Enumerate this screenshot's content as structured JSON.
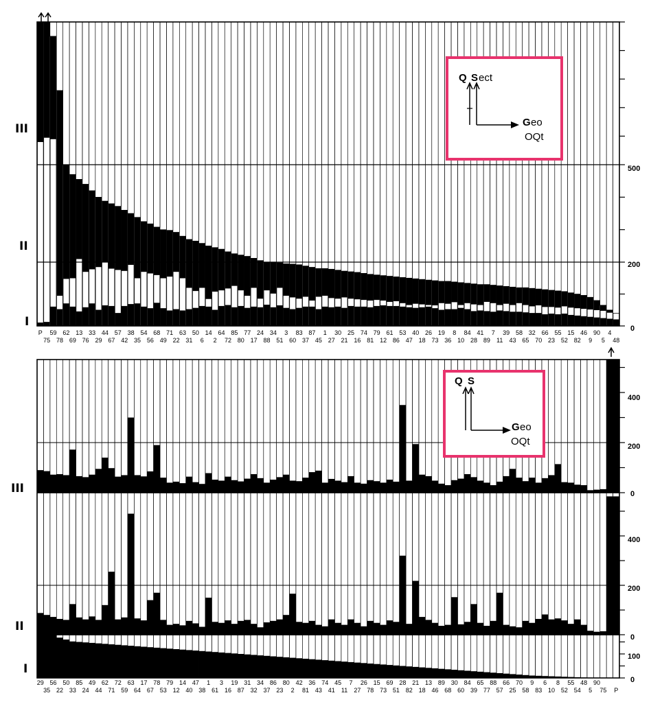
{
  "top_chart": {
    "panel_labels": [
      "III",
      "II",
      "I"
    ],
    "right_ticks": [
      "500",
      "200",
      "0"
    ],
    "inset": {
      "q": "Q",
      "s": "S",
      "s_rest": "ect",
      "geo_g": "G",
      "geo_rest": "eo",
      "oqt": "OQt"
    },
    "categories_upper": [
      "P",
      "59",
      "62",
      "13",
      "33",
      "44",
      "57",
      "38",
      "54",
      "68",
      "71",
      "63",
      "50",
      "14",
      "64",
      "85",
      "77",
      "24",
      "34",
      "3",
      "83",
      "87",
      "1",
      "30",
      "25",
      "74",
      "79",
      "61",
      "53",
      "40",
      "26",
      "19",
      "8",
      "84",
      "41",
      "7",
      "39",
      "58",
      "32",
      "66",
      "55",
      "15",
      "46",
      "90",
      "4"
    ],
    "categories_lower": [
      "75",
      "78",
      "69",
      "76",
      "29",
      "67",
      "42",
      "35",
      "56",
      "49",
      "22",
      "31",
      "6",
      "2",
      "72",
      "80",
      "17",
      "88",
      "51",
      "60",
      "37",
      "45",
      "27",
      "21",
      "16",
      "81",
      "12",
      "86",
      "47",
      "18",
      "73",
      "36",
      "10",
      "28",
      "89",
      "11",
      "43",
      "65",
      "70",
      "23",
      "52",
      "82",
      "9",
      "5",
      "48"
    ]
  },
  "bottom_chart": {
    "panel_labels": [
      "III",
      "II",
      "I"
    ],
    "right_ticks_III": [
      "400",
      "200",
      "0"
    ],
    "right_ticks_II": [
      "400",
      "200",
      "0"
    ],
    "right_ticks_I": [
      "100",
      "0"
    ],
    "inset": {
      "q": "Q",
      "s": "S",
      "geo_g": "G",
      "geo_rest": "eo",
      "oqt": "OQt"
    },
    "categories_upper": [
      "29",
      "56",
      "50",
      "85",
      "49",
      "62",
      "72",
      "63",
      "17",
      "78",
      "79",
      "14",
      "47",
      "1",
      "3",
      "19",
      "31",
      "34",
      "86",
      "80",
      "42",
      "36",
      "74",
      "45",
      "7",
      "26",
      "15",
      "69",
      "28",
      "21",
      "13",
      "89",
      "30",
      "84",
      "65",
      "88",
      "66",
      "70",
      "9",
      "6",
      "8",
      "55",
      "48",
      "90"
    ],
    "categories_lower": [
      "35",
      "22",
      "33",
      "24",
      "44",
      "71",
      "59",
      "64",
      "67",
      "53",
      "12",
      "40",
      "38",
      "61",
      "16",
      "87",
      "32",
      "37",
      "23",
      "2",
      "81",
      "43",
      "41",
      "11",
      "27",
      "78",
      "73",
      "51",
      "82",
      "18",
      "46",
      "68",
      "60",
      "39",
      "77",
      "57",
      "25",
      "58",
      "83",
      "10",
      "52",
      "54",
      "5",
      "75",
      "P"
    ]
  },
  "chart_data": [
    {
      "type": "bar",
      "title": "",
      "panels": [
        "I",
        "II",
        "III"
      ],
      "n_bars": 90,
      "scale_ticks": [
        0,
        200,
        500
      ],
      "black_top": [
        1000,
        1000,
        950,
        760,
        500,
        470,
        455,
        440,
        420,
        400,
        388,
        380,
        372,
        360,
        350,
        338,
        325,
        318,
        308,
        300,
        298,
        292,
        280,
        270,
        265,
        258,
        250,
        245,
        240,
        232,
        226,
        222,
        218,
        212,
        205,
        200,
        200,
        198,
        195,
        194,
        192,
        188,
        184,
        180,
        180,
        178,
        175,
        172,
        170,
        168,
        165,
        162,
        160,
        158,
        156,
        154,
        152,
        150,
        148,
        146,
        144,
        142,
        140,
        140,
        138,
        136,
        134,
        132,
        130,
        130,
        128,
        126,
        124,
        122,
        120,
        120,
        118,
        116,
        114,
        112,
        110,
        108,
        104,
        100,
        96,
        90,
        80,
        65,
        50,
        40
      ],
      "white_top": [
        580,
        595,
        590,
        95,
        148,
        150,
        210,
        170,
        178,
        185,
        200,
        180,
        176,
        173,
        192,
        150,
        170,
        165,
        160,
        150,
        155,
        170,
        150,
        120,
        110,
        120,
        85,
        108,
        112,
        118,
        126,
        112,
        95,
        120,
        86,
        112,
        102,
        120,
        95,
        90,
        86,
        92,
        80,
        92,
        95,
        88,
        86,
        90,
        86,
        84,
        82,
        80,
        82,
        80,
        76,
        78,
        72,
        66,
        70,
        68,
        66,
        65,
        72,
        70,
        75,
        66,
        72,
        68,
        66,
        76,
        72,
        66,
        70,
        66,
        72,
        66,
        62,
        65,
        60,
        60,
        58,
        62,
        58,
        56,
        54,
        52,
        50,
        48,
        42,
        40
      ],
      "white_bottom": [
        10,
        12,
        60,
        52,
        70,
        60,
        45,
        58,
        70,
        50,
        64,
        62,
        40,
        62,
        68,
        70,
        60,
        55,
        72,
        55,
        48,
        52,
        48,
        52,
        56,
        62,
        60,
        50,
        62,
        65,
        58,
        62,
        56,
        60,
        58,
        66,
        58,
        64,
        56,
        52,
        56,
        60,
        60,
        52,
        60,
        58,
        60,
        56,
        62,
        60,
        60,
        58,
        62,
        64,
        62,
        62,
        60,
        58,
        56,
        58,
        60,
        55,
        50,
        52,
        52,
        56,
        52,
        46,
        48,
        46,
        44,
        48,
        46,
        44,
        44,
        42,
        40,
        40,
        36,
        38,
        36,
        38,
        34,
        32,
        30,
        28,
        26,
        24,
        22,
        20
      ]
    },
    {
      "type": "bar",
      "title": "",
      "panels": [
        "I",
        "II",
        "III"
      ],
      "n_bars": 90,
      "III_ticks": [
        0,
        200,
        400
      ],
      "II_ticks": [
        0,
        200,
        400
      ],
      "I_ticks": [
        0,
        100
      ],
      "III_values": [
        90,
        86,
        72,
        74,
        70,
        172,
        66,
        62,
        72,
        95,
        140,
        98,
        64,
        70,
        300,
        70,
        65,
        85,
        190,
        60,
        40,
        44,
        38,
        64,
        42,
        35,
        78,
        52,
        48,
        64,
        50,
        45,
        56,
        74,
        58,
        40,
        52,
        62,
        72,
        48,
        46,
        60,
        82,
        88,
        40,
        55,
        48,
        42,
        66,
        40,
        36,
        50,
        46,
        40,
        52,
        44,
        350,
        48,
        194,
        72,
        66,
        48,
        36,
        30,
        50,
        56,
        74,
        62,
        48,
        40,
        30,
        44,
        66,
        95,
        60,
        46,
        60,
        40,
        58,
        70,
        114,
        42,
        40,
        32,
        30,
        10,
        12,
        14,
        560,
        560
      ],
      "II_values": [
        88,
        80,
        72,
        64,
        60,
        124,
        70,
        62,
        74,
        60,
        120,
        255,
        62,
        70,
        490,
        66,
        58,
        140,
        170,
        60,
        40,
        44,
        38,
        56,
        46,
        32,
        150,
        52,
        48,
        58,
        44,
        56,
        60,
        44,
        30,
        50,
        56,
        62,
        80,
        166,
        52,
        48,
        56,
        40,
        34,
        62,
        48,
        40,
        62,
        48,
        34,
        56,
        48,
        40,
        58,
        52,
        320,
        44,
        218,
        72,
        60,
        48,
        36,
        40,
        152,
        42,
        52,
        124,
        48,
        36,
        56,
        170,
        40,
        34,
        30,
        56,
        48,
        64,
        82,
        62,
        66,
        58,
        44,
        62,
        40,
        16,
        12,
        14,
        560,
        560
      ],
      "I_values": [
        220,
        198,
        184,
        168,
        160,
        152,
        150,
        148,
        146,
        144,
        142,
        140,
        138,
        136,
        134,
        132,
        130,
        128,
        126,
        124,
        122,
        120,
        118,
        116,
        114,
        112,
        110,
        108,
        106,
        104,
        102,
        100,
        98,
        96,
        94,
        92,
        90,
        88,
        86,
        84,
        82,
        80,
        78,
        76,
        74,
        72,
        70,
        68,
        66,
        64,
        62,
        60,
        58,
        56,
        54,
        52,
        50,
        48,
        46,
        44,
        42,
        40,
        38,
        36,
        34,
        32,
        30,
        28,
        26,
        24,
        22,
        20,
        18,
        16,
        14,
        12,
        10,
        9,
        8,
        7,
        6,
        5,
        4,
        3,
        2,
        1,
        0,
        0,
        0,
        0
      ]
    }
  ]
}
